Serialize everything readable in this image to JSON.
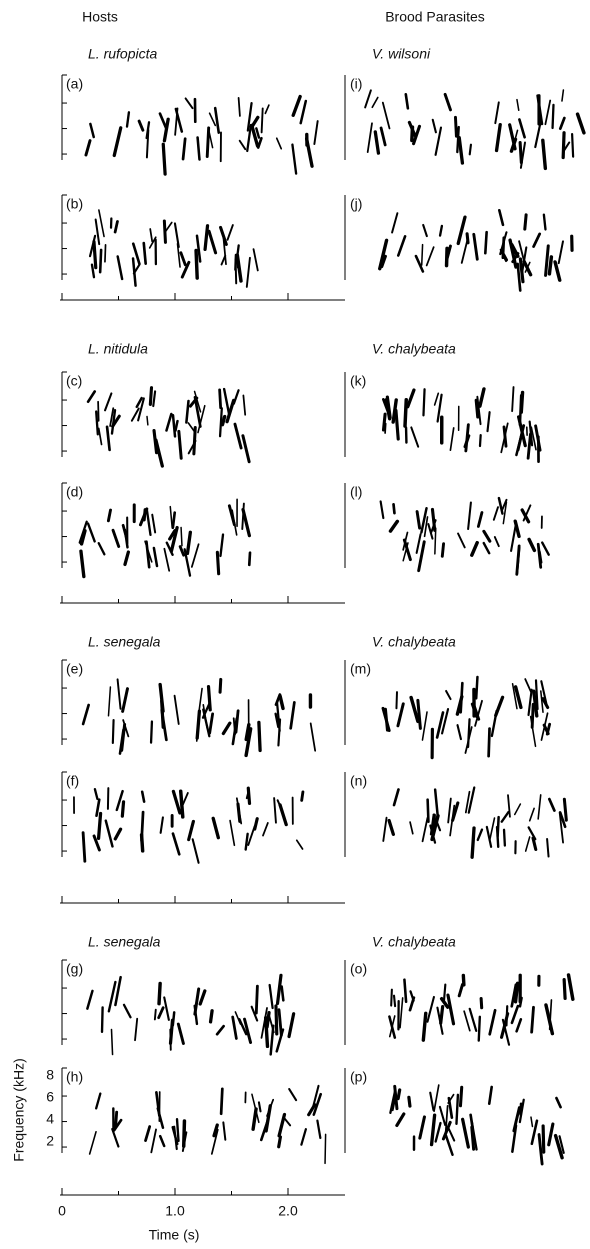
{
  "column_headers": [
    "Hosts",
    "Brood Parasites"
  ],
  "blocks": [
    {
      "host_species": "L. rufopicta",
      "parasite_species": "V. wilsoni",
      "host_panels": [
        "(a)",
        "(b)"
      ],
      "parasite_panels": [
        "(i)",
        "(j)"
      ]
    },
    {
      "host_species": "L. nitidula",
      "parasite_species": "V. chalybeata",
      "host_panels": [
        "(c)",
        "(d)"
      ],
      "parasite_panels": [
        "(k)",
        "(l)"
      ]
    },
    {
      "host_species": "L. senegala",
      "parasite_species": "V. chalybeata",
      "host_panels": [
        "(e)",
        "(f)"
      ],
      "parasite_panels": [
        "(m)",
        "(n)"
      ]
    },
    {
      "host_species": "L. senegala",
      "parasite_species": "V. chalybeata",
      "host_panels": [
        "(g)",
        "(h)"
      ],
      "parasite_panels": [
        "(o)",
        "(p)"
      ]
    }
  ],
  "axis": {
    "x_ticks": [
      "0",
      "1.0",
      "2.0"
    ],
    "x_label": "Time (s)",
    "y_ticks": [
      "8",
      "6",
      "4",
      "2"
    ],
    "y_label": "Frequency (kHz)"
  }
}
